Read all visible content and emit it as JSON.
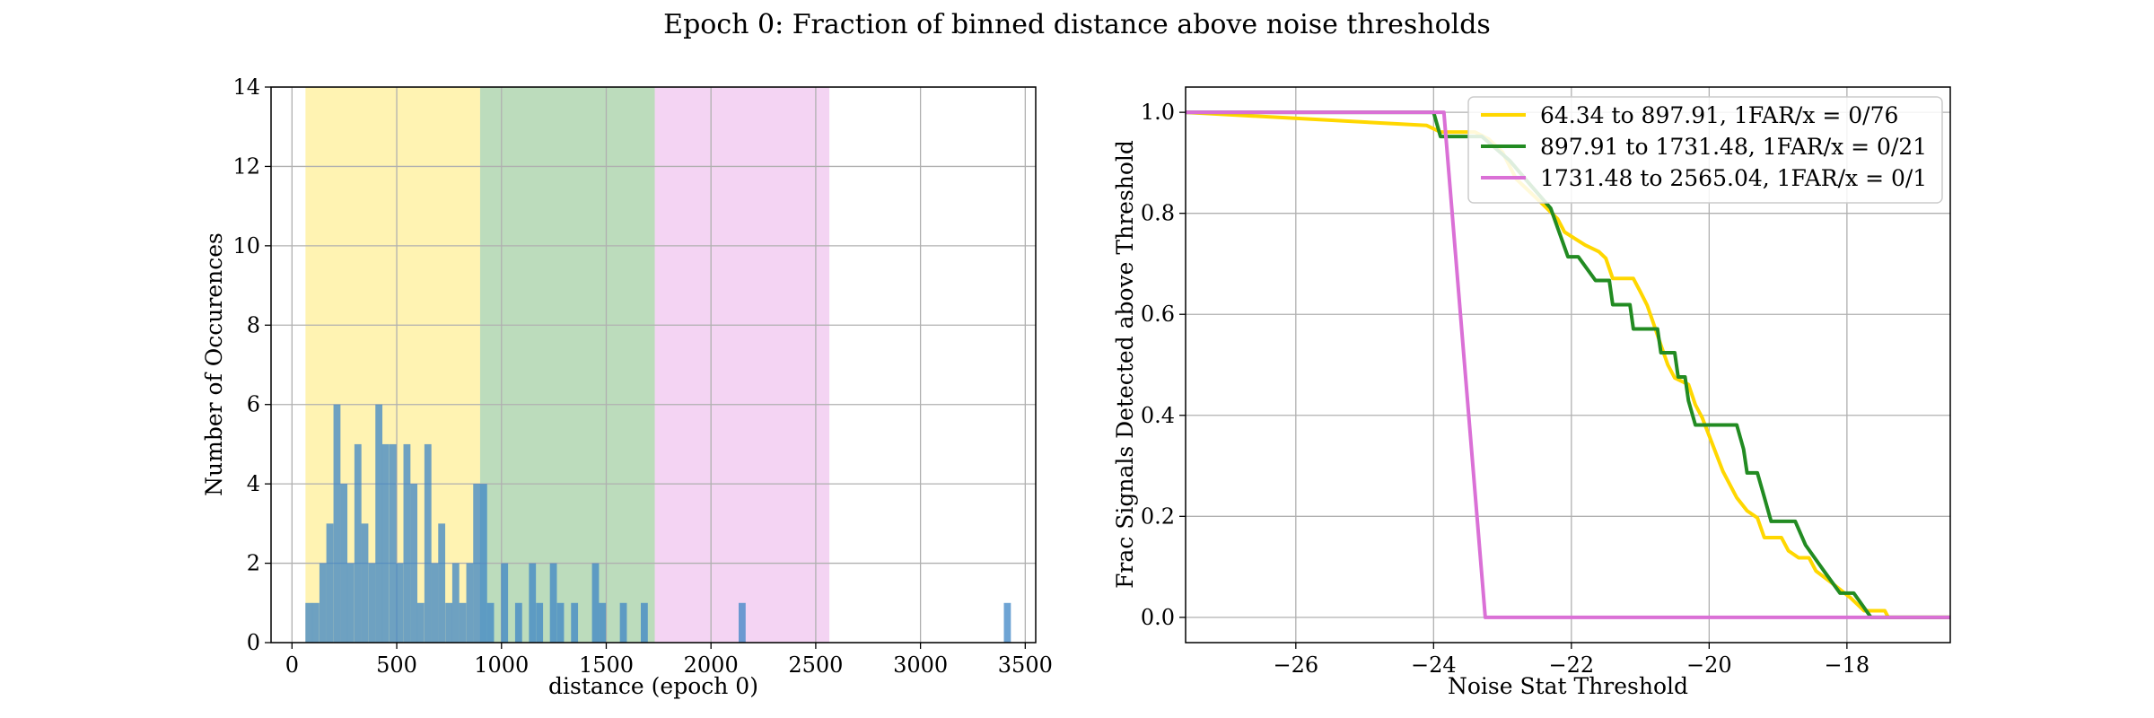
{
  "figure": {
    "title": "Epoch 0: Fraction of binned distance above noise thresholds"
  },
  "chart_data": [
    {
      "type": "bar",
      "xlabel": "distance (epoch 0)",
      "ylabel": "Number of Occurences",
      "xlim": [
        -100,
        3550
      ],
      "ylim": [
        0,
        14
      ],
      "xticks": [
        0,
        500,
        1000,
        1500,
        2000,
        2500,
        3000,
        3500
      ],
      "yticks": [
        0,
        2,
        4,
        6,
        8,
        10,
        12,
        14
      ],
      "grid": true,
      "bin_width": 33.4,
      "shaded_ranges": [
        {
          "from": 64.34,
          "to": 897.91,
          "color": "#FFD700"
        },
        {
          "from": 897.91,
          "to": 1731.48,
          "color": "#228B22"
        },
        {
          "from": 1731.48,
          "to": 2565.04,
          "color": "#DA70D6"
        }
      ],
      "bar_color": "#3D85C6",
      "bins": [
        {
          "x": 64,
          "count": 1
        },
        {
          "x": 97,
          "count": 1
        },
        {
          "x": 131,
          "count": 2
        },
        {
          "x": 164,
          "count": 3
        },
        {
          "x": 198,
          "count": 6
        },
        {
          "x": 231,
          "count": 4
        },
        {
          "x": 264,
          "count": 2
        },
        {
          "x": 298,
          "count": 5
        },
        {
          "x": 331,
          "count": 3
        },
        {
          "x": 365,
          "count": 2
        },
        {
          "x": 398,
          "count": 6
        },
        {
          "x": 431,
          "count": 5
        },
        {
          "x": 465,
          "count": 5
        },
        {
          "x": 498,
          "count": 2
        },
        {
          "x": 532,
          "count": 5
        },
        {
          "x": 565,
          "count": 4
        },
        {
          "x": 598,
          "count": 1
        },
        {
          "x": 632,
          "count": 5
        },
        {
          "x": 665,
          "count": 2
        },
        {
          "x": 698,
          "count": 3
        },
        {
          "x": 732,
          "count": 1
        },
        {
          "x": 765,
          "count": 2
        },
        {
          "x": 798,
          "count": 1
        },
        {
          "x": 832,
          "count": 2
        },
        {
          "x": 865,
          "count": 4
        },
        {
          "x": 898,
          "count": 4
        },
        {
          "x": 931,
          "count": 1
        },
        {
          "x": 998,
          "count": 2
        },
        {
          "x": 1065,
          "count": 1
        },
        {
          "x": 1131,
          "count": 2
        },
        {
          "x": 1165,
          "count": 1
        },
        {
          "x": 1231,
          "count": 2
        },
        {
          "x": 1265,
          "count": 1
        },
        {
          "x": 1332,
          "count": 1
        },
        {
          "x": 1432,
          "count": 2
        },
        {
          "x": 1465,
          "count": 1
        },
        {
          "x": 1565,
          "count": 1
        },
        {
          "x": 1665,
          "count": 1
        },
        {
          "x": 2132,
          "count": 1
        },
        {
          "x": 3398,
          "count": 1
        }
      ]
    },
    {
      "type": "line",
      "xlabel": "Noise Stat Threshold",
      "ylabel": "Frac Signals Detected above Threshold",
      "xlim": [
        -27.6,
        -16.5
      ],
      "ylim": [
        -0.05,
        1.05
      ],
      "xticks": [
        -26,
        -24,
        -22,
        -20,
        -18
      ],
      "yticks": [
        0.0,
        0.2,
        0.4,
        0.6,
        0.8,
        1.0
      ],
      "legend": "top-right",
      "grid": true,
      "series": [
        {
          "name": "64.34 to 897.91, 1FAR/x = 0/76",
          "color": "#FFD700",
          "points": [
            [
              -27.6,
              1.0
            ],
            [
              -24.1,
              0.974
            ],
            [
              -23.9,
              0.961
            ],
            [
              -23.4,
              0.961
            ],
            [
              -23.2,
              0.947
            ],
            [
              -23.0,
              0.921
            ],
            [
              -22.8,
              0.868
            ],
            [
              -22.6,
              0.842
            ],
            [
              -22.4,
              0.816
            ],
            [
              -22.2,
              0.789
            ],
            [
              -22.1,
              0.763
            ],
            [
              -21.95,
              0.75
            ],
            [
              -21.8,
              0.737
            ],
            [
              -21.6,
              0.724
            ],
            [
              -21.5,
              0.711
            ],
            [
              -21.4,
              0.671
            ],
            [
              -21.1,
              0.671
            ],
            [
              -21.0,
              0.645
            ],
            [
              -20.9,
              0.618
            ],
            [
              -20.8,
              0.579
            ],
            [
              -20.7,
              0.539
            ],
            [
              -20.6,
              0.5
            ],
            [
              -20.5,
              0.474
            ],
            [
              -20.3,
              0.461
            ],
            [
              -20.2,
              0.421
            ],
            [
              -20.1,
              0.395
            ],
            [
              -19.95,
              0.342
            ],
            [
              -19.8,
              0.289
            ],
            [
              -19.6,
              0.237
            ],
            [
              -19.45,
              0.211
            ],
            [
              -19.3,
              0.197
            ],
            [
              -19.2,
              0.158
            ],
            [
              -18.95,
              0.158
            ],
            [
              -18.85,
              0.132
            ],
            [
              -18.7,
              0.118
            ],
            [
              -18.55,
              0.118
            ],
            [
              -18.45,
              0.092
            ],
            [
              -18.2,
              0.066
            ],
            [
              -17.95,
              0.039
            ],
            [
              -17.75,
              0.013
            ],
            [
              -17.45,
              0.013
            ],
            [
              -17.4,
              0.0
            ],
            [
              -16.5,
              0.0
            ]
          ]
        },
        {
          "name": "897.91 to 1731.48, 1FAR/x = 0/21",
          "color": "#228B22",
          "points": [
            [
              -27.6,
              1.0
            ],
            [
              -24.0,
              1.0
            ],
            [
              -23.9,
              0.952
            ],
            [
              -23.3,
              0.952
            ],
            [
              -22.9,
              0.905
            ],
            [
              -22.6,
              0.857
            ],
            [
              -22.3,
              0.81
            ],
            [
              -22.05,
              0.714
            ],
            [
              -21.9,
              0.714
            ],
            [
              -21.65,
              0.667
            ],
            [
              -21.45,
              0.667
            ],
            [
              -21.4,
              0.619
            ],
            [
              -21.15,
              0.619
            ],
            [
              -21.1,
              0.571
            ],
            [
              -20.75,
              0.571
            ],
            [
              -20.7,
              0.524
            ],
            [
              -20.5,
              0.524
            ],
            [
              -20.45,
              0.476
            ],
            [
              -20.35,
              0.476
            ],
            [
              -20.3,
              0.429
            ],
            [
              -20.2,
              0.381
            ],
            [
              -19.6,
              0.381
            ],
            [
              -19.5,
              0.333
            ],
            [
              -19.45,
              0.286
            ],
            [
              -19.3,
              0.286
            ],
            [
              -19.2,
              0.238
            ],
            [
              -19.1,
              0.19
            ],
            [
              -18.75,
              0.19
            ],
            [
              -18.6,
              0.143
            ],
            [
              -18.35,
              0.095
            ],
            [
              -18.1,
              0.048
            ],
            [
              -17.9,
              0.048
            ],
            [
              -17.65,
              0.0
            ],
            [
              -16.5,
              0.0
            ]
          ]
        },
        {
          "name": "1731.48 to 2565.04, 1FAR/x = 0/1",
          "color": "#DA70D6",
          "points": [
            [
              -27.6,
              1.0
            ],
            [
              -23.85,
              1.0
            ],
            [
              -23.25,
              0.0
            ],
            [
              -16.5,
              0.0
            ]
          ]
        }
      ]
    }
  ]
}
